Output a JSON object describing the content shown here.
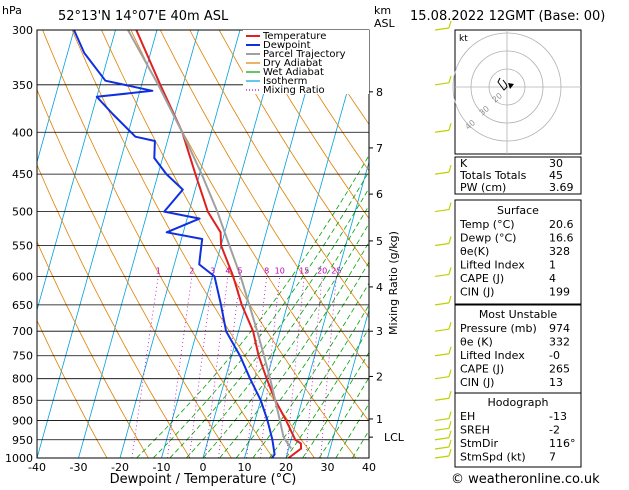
{
  "header": {
    "p_unit": "hPa",
    "location": "52°13'N  14°07'E  40m  ASL",
    "km_label": "km",
    "asl_label": "ASL",
    "datetime": "15.08.2022  12GMT  (Base: 00)"
  },
  "footer": {
    "copyright": "© weatheronline.co.uk"
  },
  "chart_data": [
    {
      "type": "line",
      "subtype": "skew-T log-P thermodynamic diagram",
      "xlabel": "Dewpoint / Temperature (°C)",
      "ylabel_right": "Mixing Ratio (g/kg)",
      "xlim": [
        -40,
        40
      ],
      "ylim_hpa": [
        1000,
        300
      ],
      "y_scale": "log",
      "x_ticks": [
        "-40",
        "-30",
        "-20",
        "-10",
        "0",
        "10",
        "20",
        "30",
        "40"
      ],
      "pressure_ticks": [
        "300",
        "350",
        "400",
        "450",
        "500",
        "550",
        "600",
        "650",
        "700",
        "750",
        "800",
        "850",
        "900",
        "950",
        "1000"
      ],
      "km_ticks": [
        {
          "label": "8",
          "p": 357
        },
        {
          "label": "7",
          "p": 418
        },
        {
          "label": "6",
          "p": 476
        },
        {
          "label": "5",
          "p": 543
        },
        {
          "label": "4",
          "p": 618
        },
        {
          "label": "3",
          "p": 700
        },
        {
          "label": "2",
          "p": 795
        },
        {
          "label": "1",
          "p": 896
        }
      ],
      "lcl": {
        "label": "LCL",
        "p": 943
      },
      "mixing_ratio_labels": [
        "1",
        "2",
        "3",
        "4",
        "5",
        "8",
        "10",
        "15",
        "20",
        "25"
      ],
      "mixing_ratio_values": [
        1,
        2,
        3,
        4,
        5,
        8,
        10,
        15,
        20,
        25
      ],
      "legend": {
        "placement": "top-right",
        "items": [
          {
            "label": "Temperature",
            "color": "#e02020",
            "style": "solid"
          },
          {
            "label": "Dewpoint",
            "color": "#1030e0",
            "style": "solid"
          },
          {
            "label": "Parcel Trajectory",
            "color": "#a0a0a0",
            "style": "solid"
          },
          {
            "label": "Dry Adiabat",
            "color": "#e08000",
            "style": "solid"
          },
          {
            "label": "Wet Adiabat",
            "color": "#00a000",
            "style": "solid"
          },
          {
            "label": "Isotherm",
            "color": "#00a0e0",
            "style": "solid"
          },
          {
            "label": "Mixing Ratio",
            "color": "#c000c0",
            "style": "dotted"
          }
        ]
      },
      "series": [
        {
          "name": "Temperature",
          "color": "#e02020",
          "points": [
            {
              "p": 1000,
              "t": 20.6
            },
            {
              "p": 974,
              "t": 23.0
            },
            {
              "p": 960,
              "t": 22.6
            },
            {
              "p": 950,
              "t": 21.0
            },
            {
              "p": 900,
              "t": 17.5
            },
            {
              "p": 850,
              "t": 13.5
            },
            {
              "p": 800,
              "t": 10.0
            },
            {
              "p": 750,
              "t": 6.5
            },
            {
              "p": 700,
              "t": 3.5
            },
            {
              "p": 650,
              "t": -1.0
            },
            {
              "p": 600,
              "t": -5.0
            },
            {
              "p": 550,
              "t": -10.0
            },
            {
              "p": 530,
              "t": -11.0
            },
            {
              "p": 500,
              "t": -15.5
            },
            {
              "p": 450,
              "t": -21.0
            },
            {
              "p": 400,
              "t": -27.0
            },
            {
              "p": 350,
              "t": -35.5
            },
            {
              "p": 300,
              "t": -45.0
            }
          ]
        },
        {
          "name": "Dewpoint",
          "color": "#1030e0",
          "points": [
            {
              "p": 1000,
              "t": 16.6
            },
            {
              "p": 990,
              "t": 17.0
            },
            {
              "p": 950,
              "t": 15.5
            },
            {
              "p": 900,
              "t": 13.0
            },
            {
              "p": 850,
              "t": 10.0
            },
            {
              "p": 800,
              "t": 6.0
            },
            {
              "p": 750,
              "t": 2.0
            },
            {
              "p": 700,
              "t": -3.0
            },
            {
              "p": 650,
              "t": -6.0
            },
            {
              "p": 600,
              "t": -9.5
            },
            {
              "p": 580,
              "t": -14.0
            },
            {
              "p": 560,
              "t": -14.5
            },
            {
              "p": 540,
              "t": -15.0
            },
            {
              "p": 530,
              "t": -24.0
            },
            {
              "p": 510,
              "t": -17.0
            },
            {
              "p": 500,
              "t": -26.0
            },
            {
              "p": 470,
              "t": -23.0
            },
            {
              "p": 450,
              "t": -28.0
            },
            {
              "p": 430,
              "t": -32.0
            },
            {
              "p": 410,
              "t": -33.0
            },
            {
              "p": 405,
              "t": -38.0
            },
            {
              "p": 380,
              "t": -45.0
            },
            {
              "p": 362,
              "t": -50.0
            },
            {
              "p": 356,
              "t": -37.0
            },
            {
              "p": 346,
              "t": -49.0
            },
            {
              "p": 320,
              "t": -56.0
            },
            {
              "p": 300,
              "t": -60.0
            }
          ]
        },
        {
          "name": "Parcel Trajectory",
          "color": "#a0a0a0",
          "points": [
            {
              "p": 974,
              "t": 20.6
            },
            {
              "p": 943,
              "t": 18.0
            },
            {
              "p": 900,
              "t": 16.0
            },
            {
              "p": 850,
              "t": 13.5
            },
            {
              "p": 800,
              "t": 10.8
            },
            {
              "p": 750,
              "t": 7.8
            },
            {
              "p": 700,
              "t": 4.5
            },
            {
              "p": 650,
              "t": 0.8
            },
            {
              "p": 600,
              "t": -3.2
            },
            {
              "p": 550,
              "t": -8.0
            },
            {
              "p": 500,
              "t": -13.2
            },
            {
              "p": 450,
              "t": -19.5
            },
            {
              "p": 400,
              "t": -27.0
            },
            {
              "p": 350,
              "t": -36.0
            },
            {
              "p": 300,
              "t": -47.0
            }
          ]
        }
      ]
    },
    {
      "type": "scatter",
      "subtype": "hodograph",
      "title": "kt",
      "ring_labels": [
        "20",
        "30",
        "40"
      ],
      "grid": true
    }
  ],
  "indices": {
    "basic": [
      {
        "label": "K",
        "value": "30"
      },
      {
        "label": "Totals Totals",
        "value": "45"
      },
      {
        "label": "PW (cm)",
        "value": "3.69"
      }
    ],
    "surface_title": "Surface",
    "surface": [
      {
        "label": "Temp (°C)",
        "value": "20.6"
      },
      {
        "label": "Dewp (°C)",
        "value": "16.6"
      },
      {
        "label": "θe(K)",
        "value": "328"
      },
      {
        "label": "Lifted Index",
        "value": "1"
      },
      {
        "label": "CAPE (J)",
        "value": "4"
      },
      {
        "label": "CIN (J)",
        "value": "199"
      }
    ],
    "unstable_title": "Most Unstable",
    "unstable": [
      {
        "label": "Pressure (mb)",
        "value": "974"
      },
      {
        "label": "θe (K)",
        "value": "332"
      },
      {
        "label": "Lifted Index",
        "value": "-0"
      },
      {
        "label": "CAPE (J)",
        "value": "265"
      },
      {
        "label": "CIN (J)",
        "value": "13"
      }
    ],
    "hodo_title": "Hodograph",
    "hodo": [
      {
        "label": "EH",
        "value": "-13"
      },
      {
        "label": "SREH",
        "value": "-2"
      },
      {
        "label": "StmDir",
        "value": "116°"
      },
      {
        "label": "StmSpd (kt)",
        "value": "7"
      }
    ]
  },
  "colors": {
    "isotherm": "#00a0e0",
    "dry_adiabat": "#e08000",
    "wet_adiabat": "#00a000",
    "mixing_ratio": "#c000c0",
    "wind_barb": "#c0d000"
  }
}
